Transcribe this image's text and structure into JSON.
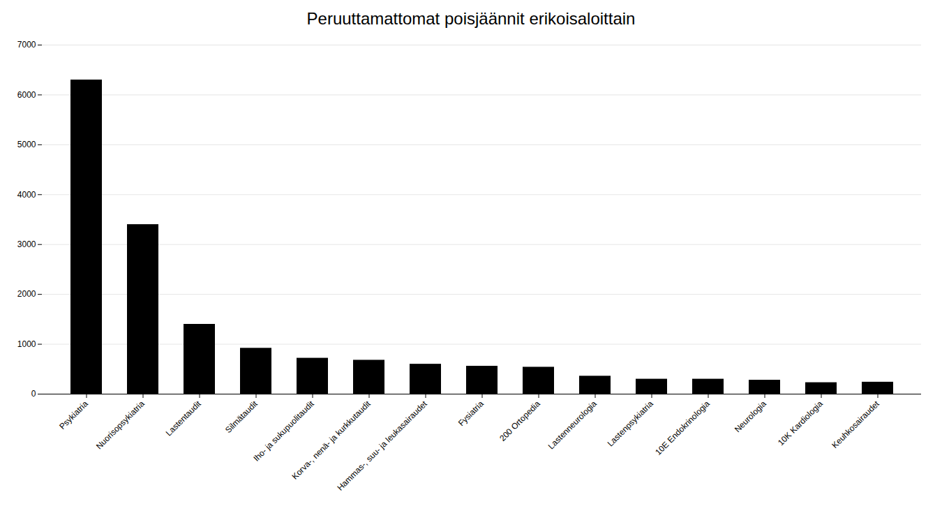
{
  "chart_data": {
    "type": "bar",
    "title": "Peruuttamattomat poisjäännit erikoisaloittain",
    "categories": [
      "Psykiatria",
      "Nuorisopsykiatria",
      "Lastentaudit",
      "Silmätaudit",
      "Iho- ja sukupuolitaudit",
      "Korva-, nenä- ja kurkkutaudit",
      "Hammas-, suu- ja leukasairaudet",
      "Fysiatria",
      "200 Ortopedia",
      "Lastenneurologia",
      "Lastenpsykiatria",
      "10E Endokrinologia",
      "Neurologia",
      "10K Kardiologia",
      "Keuhkosairaudet"
    ],
    "values": [
      6300,
      3400,
      1400,
      920,
      720,
      680,
      600,
      560,
      540,
      360,
      300,
      300,
      280,
      230,
      240
    ],
    "ylim": [
      0,
      7000
    ],
    "yticks": [
      0,
      1000,
      2000,
      3000,
      4000,
      5000,
      6000,
      7000
    ],
    "grid": true
  }
}
